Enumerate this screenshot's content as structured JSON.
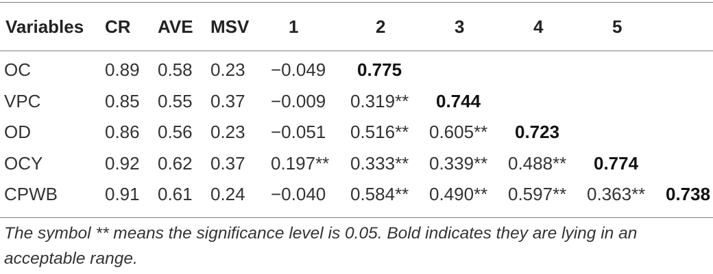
{
  "table": {
    "headers": [
      "Variables",
      "CR",
      "AVE",
      "MSV",
      "1",
      "2",
      "3",
      "4",
      "5",
      ""
    ],
    "rows": [
      [
        "OC",
        "0.89",
        "0.58",
        "0.23",
        "−0.049",
        "0.775",
        "",
        "",
        "",
        ""
      ],
      [
        "VPC",
        "0.85",
        "0.55",
        "0.37",
        "−0.009",
        "0.319**",
        "0.744",
        "",
        "",
        ""
      ],
      [
        "OD",
        "0.86",
        "0.56",
        "0.23",
        "−0.051",
        "0.516**",
        "0.605**",
        "0.723",
        "",
        ""
      ],
      [
        "OCY",
        "0.92",
        "0.62",
        "0.37",
        "0.197**",
        "0.333**",
        "0.339**",
        "0.488**",
        "0.774",
        ""
      ],
      [
        "CPWB",
        "0.91",
        "0.61",
        "0.24",
        "−0.040",
        "0.584**",
        "0.490**",
        "0.597**",
        "0.363**",
        "0.738"
      ]
    ]
  },
  "footnote": "The symbol ** means the significance level is 0.05. Bold indicates they are lying in an acceptable range."
}
